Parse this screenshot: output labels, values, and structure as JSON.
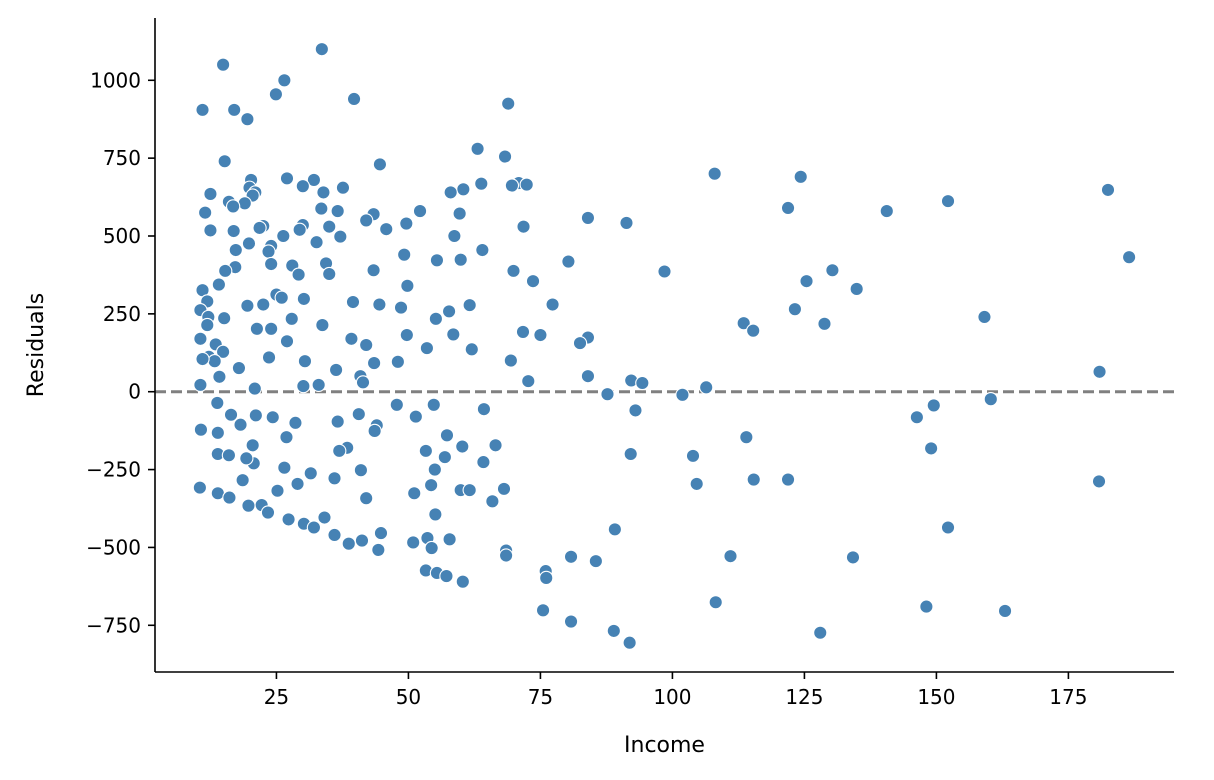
{
  "chart_data": {
    "type": "scatter",
    "title": "",
    "xlabel": "Income",
    "ylabel": "Residuals",
    "xlim": [
      2,
      195
    ],
    "ylim": [
      -900,
      1200
    ],
    "xticks": [
      "25",
      "50",
      "75",
      "100",
      "125",
      "150",
      "175"
    ],
    "yticks": [
      "−750",
      "−500",
      "−250",
      "0",
      "250",
      "500",
      "750",
      "1000"
    ],
    "xtick_values": [
      25,
      50,
      75,
      100,
      125,
      150,
      175
    ],
    "ytick_values": [
      -750,
      -500,
      -250,
      0,
      250,
      500,
      750,
      1000
    ],
    "reference_line": {
      "y": 0,
      "style": "dashed",
      "color": "#808080"
    },
    "grid": false,
    "marker_color": "#4682b4",
    "marker_edge_color": "#ffffff",
    "points": [
      [
        14.9,
        1050
      ],
      [
        33.6,
        1100
      ],
      [
        26.5,
        1000
      ],
      [
        24.9,
        955
      ],
      [
        39.7,
        940
      ],
      [
        68.9,
        925
      ],
      [
        11.0,
        905
      ],
      [
        17.0,
        905
      ],
      [
        19.5,
        875
      ],
      [
        63.1,
        780
      ],
      [
        68.3,
        755
      ],
      [
        15.2,
        740
      ],
      [
        44.6,
        730
      ],
      [
        108.0,
        700
      ],
      [
        124.3,
        690
      ],
      [
        27.0,
        685
      ],
      [
        32.1,
        680
      ],
      [
        20.2,
        680
      ],
      [
        70.9,
        670
      ],
      [
        63.8,
        668
      ],
      [
        72.4,
        665
      ],
      [
        69.6,
        662
      ],
      [
        30.0,
        660
      ],
      [
        19.9,
        655
      ],
      [
        37.6,
        655
      ],
      [
        60.4,
        650
      ],
      [
        182.5,
        648
      ],
      [
        33.9,
        640
      ],
      [
        21.0,
        640
      ],
      [
        58.0,
        640
      ],
      [
        12.5,
        635
      ],
      [
        20.5,
        630
      ],
      [
        152.2,
        612
      ],
      [
        16.0,
        610
      ],
      [
        19.0,
        605
      ],
      [
        16.8,
        595
      ],
      [
        121.9,
        590
      ],
      [
        33.5,
        588
      ],
      [
        140.6,
        580
      ],
      [
        36.6,
        580
      ],
      [
        52.2,
        580
      ],
      [
        11.5,
        575
      ],
      [
        59.7,
        572
      ],
      [
        43.4,
        570
      ],
      [
        84.0,
        558
      ],
      [
        42.0,
        550
      ],
      [
        91.3,
        542
      ],
      [
        49.6,
        540
      ],
      [
        30.0,
        535
      ],
      [
        22.5,
        532
      ],
      [
        35.0,
        530
      ],
      [
        71.8,
        530
      ],
      [
        21.8,
        526
      ],
      [
        45.8,
        522
      ],
      [
        29.4,
        520
      ],
      [
        12.5,
        518
      ],
      [
        16.9,
        516
      ],
      [
        58.7,
        500
      ],
      [
        37.1,
        498
      ],
      [
        26.3,
        500
      ],
      [
        32.6,
        480
      ],
      [
        19.8,
        476
      ],
      [
        24.0,
        468
      ],
      [
        17.3,
        455
      ],
      [
        64.0,
        455
      ],
      [
        23.5,
        450
      ],
      [
        49.2,
        440
      ],
      [
        186.5,
        432
      ],
      [
        55.4,
        422
      ],
      [
        59.9,
        424
      ],
      [
        80.3,
        418
      ],
      [
        34.4,
        412
      ],
      [
        24.0,
        410
      ],
      [
        28.0,
        405
      ],
      [
        17.2,
        400
      ],
      [
        15.3,
        388
      ],
      [
        43.4,
        390
      ],
      [
        69.9,
        388
      ],
      [
        98.5,
        386
      ],
      [
        130.3,
        390
      ],
      [
        35.0,
        378
      ],
      [
        29.2,
        376
      ],
      [
        14.1,
        344
      ],
      [
        73.6,
        355
      ],
      [
        125.4,
        355
      ],
      [
        49.8,
        340
      ],
      [
        134.9,
        330
      ],
      [
        11.0,
        326
      ],
      [
        25.0,
        312
      ],
      [
        26.0,
        302
      ],
      [
        11.9,
        290
      ],
      [
        30.2,
        298
      ],
      [
        39.5,
        288
      ],
      [
        44.5,
        280
      ],
      [
        77.3,
        280
      ],
      [
        22.5,
        280
      ],
      [
        19.5,
        276
      ],
      [
        61.6,
        278
      ],
      [
        48.6,
        270
      ],
      [
        123.2,
        265
      ],
      [
        10.6,
        262
      ],
      [
        57.7,
        258
      ],
      [
        12.1,
        240
      ],
      [
        15.1,
        236
      ],
      [
        27.9,
        234
      ],
      [
        55.2,
        234
      ],
      [
        159.1,
        240
      ],
      [
        113.5,
        220
      ],
      [
        33.7,
        214
      ],
      [
        11.9,
        214
      ],
      [
        128.8,
        218
      ],
      [
        21.3,
        202
      ],
      [
        24.0,
        202
      ],
      [
        115.3,
        196
      ],
      [
        71.7,
        192
      ],
      [
        58.5,
        184
      ],
      [
        75.0,
        182
      ],
      [
        84.0,
        174
      ],
      [
        49.7,
        182
      ],
      [
        39.2,
        170
      ],
      [
        10.6,
        170
      ],
      [
        82.5,
        156
      ],
      [
        27.0,
        162
      ],
      [
        42.0,
        150
      ],
      [
        13.5,
        152
      ],
      [
        53.5,
        140
      ],
      [
        62.0,
        136
      ],
      [
        14.9,
        128
      ],
      [
        12.2,
        112
      ],
      [
        23.6,
        110
      ],
      [
        30.4,
        98
      ],
      [
        43.5,
        92
      ],
      [
        13.3,
        98
      ],
      [
        11.0,
        105
      ],
      [
        48.0,
        96
      ],
      [
        69.4,
        100
      ],
      [
        36.3,
        70
      ],
      [
        17.9,
        76
      ],
      [
        180.9,
        64
      ],
      [
        84.0,
        50
      ],
      [
        40.9,
        50
      ],
      [
        14.2,
        48
      ],
      [
        72.7,
        34
      ],
      [
        33.0,
        22
      ],
      [
        41.4,
        30
      ],
      [
        92.2,
        36
      ],
      [
        106.4,
        14
      ],
      [
        94.3,
        28
      ],
      [
        10.6,
        22
      ],
      [
        20.9,
        10
      ],
      [
        30.1,
        18
      ],
      [
        87.7,
        -8
      ],
      [
        101.9,
        -10
      ],
      [
        160.3,
        -24
      ],
      [
        47.8,
        -42
      ],
      [
        54.8,
        -42
      ],
      [
        13.8,
        -36
      ],
      [
        64.3,
        -56
      ],
      [
        93.0,
        -60
      ],
      [
        149.5,
        -44
      ],
      [
        40.6,
        -72
      ],
      [
        51.4,
        -80
      ],
      [
        24.3,
        -82
      ],
      [
        146.3,
        -82
      ],
      [
        36.6,
        -96
      ],
      [
        21.1,
        -76
      ],
      [
        16.4,
        -74
      ],
      [
        28.6,
        -100
      ],
      [
        44.0,
        -108
      ],
      [
        10.7,
        -122
      ],
      [
        18.2,
        -106
      ],
      [
        43.6,
        -126
      ],
      [
        26.9,
        -146
      ],
      [
        114.0,
        -146
      ],
      [
        57.3,
        -140
      ],
      [
        13.9,
        -132
      ],
      [
        20.5,
        -172
      ],
      [
        66.5,
        -172
      ],
      [
        60.2,
        -176
      ],
      [
        38.4,
        -180
      ],
      [
        36.9,
        -190
      ],
      [
        53.3,
        -190
      ],
      [
        149.0,
        -182
      ],
      [
        13.9,
        -200
      ],
      [
        103.9,
        -206
      ],
      [
        56.9,
        -210
      ],
      [
        92.1,
        -200
      ],
      [
        64.2,
        -226
      ],
      [
        20.7,
        -230
      ],
      [
        19.3,
        -214
      ],
      [
        41.0,
        -252
      ],
      [
        55.0,
        -250
      ],
      [
        26.5,
        -244
      ],
      [
        31.5,
        -262
      ],
      [
        16.0,
        -204
      ],
      [
        121.9,
        -282
      ],
      [
        115.4,
        -282
      ],
      [
        180.8,
        -288
      ],
      [
        104.6,
        -296
      ],
      [
        10.5,
        -308
      ],
      [
        29.0,
        -296
      ],
      [
        18.6,
        -284
      ],
      [
        68.1,
        -312
      ],
      [
        59.9,
        -316
      ],
      [
        61.6,
        -316
      ],
      [
        36.0,
        -278
      ],
      [
        25.2,
        -318
      ],
      [
        51.1,
        -326
      ],
      [
        54.3,
        -300
      ],
      [
        65.9,
        -352
      ],
      [
        13.9,
        -326
      ],
      [
        16.1,
        -340
      ],
      [
        42.0,
        -342
      ],
      [
        22.2,
        -364
      ],
      [
        19.7,
        -366
      ],
      [
        55.1,
        -394
      ],
      [
        23.4,
        -388
      ],
      [
        34.1,
        -404
      ],
      [
        27.3,
        -410
      ],
      [
        30.2,
        -424
      ],
      [
        32.1,
        -436
      ],
      [
        36.0,
        -460
      ],
      [
        41.2,
        -478
      ],
      [
        44.8,
        -454
      ],
      [
        152.2,
        -436
      ],
      [
        89.1,
        -442
      ],
      [
        50.9,
        -484
      ],
      [
        57.8,
        -474
      ],
      [
        53.6,
        -470
      ],
      [
        54.4,
        -502
      ],
      [
        38.7,
        -488
      ],
      [
        44.3,
        -508
      ],
      [
        68.5,
        -510
      ],
      [
        68.5,
        -526
      ],
      [
        111.0,
        -528
      ],
      [
        80.8,
        -530
      ],
      [
        85.5,
        -544
      ],
      [
        134.2,
        -532
      ],
      [
        76.0,
        -576
      ],
      [
        53.3,
        -574
      ],
      [
        55.4,
        -582
      ],
      [
        76.1,
        -598
      ],
      [
        57.2,
        -592
      ],
      [
        60.3,
        -610
      ],
      [
        108.2,
        -676
      ],
      [
        148.1,
        -690
      ],
      [
        75.5,
        -702
      ],
      [
        163.0,
        -704
      ],
      [
        80.8,
        -738
      ],
      [
        88.9,
        -768
      ],
      [
        128.0,
        -774
      ],
      [
        91.9,
        -806
      ]
    ]
  }
}
